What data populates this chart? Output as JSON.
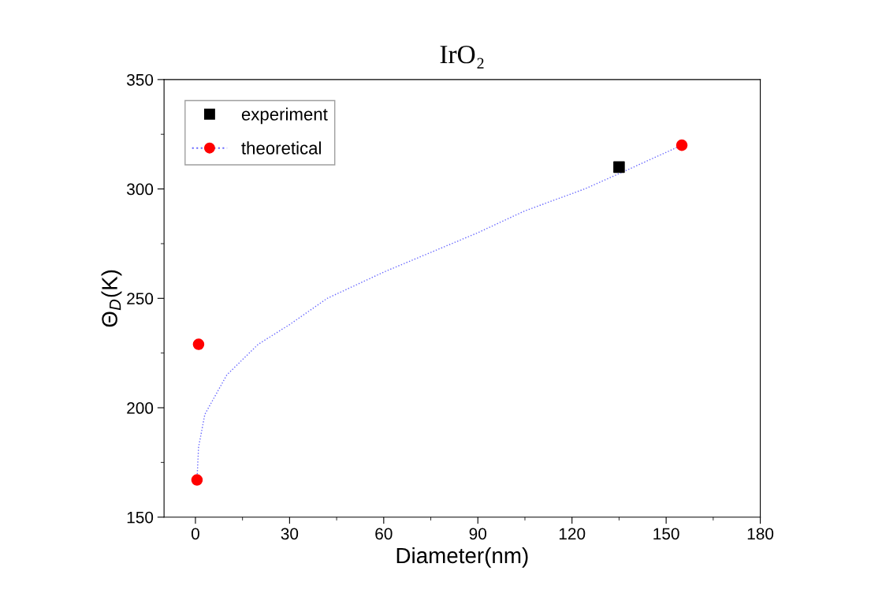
{
  "chart_data": {
    "type": "scatter",
    "title": "IrO₂",
    "xlabel": "Diameter(nm)",
    "ylabel": "Θ$_{D}$(K)",
    "xlim": [
      -10,
      180
    ],
    "xticks": [
      0,
      30,
      60,
      90,
      120,
      150,
      180
    ],
    "ylim": [
      150,
      350
    ],
    "yticks": [
      150,
      200,
      250,
      300,
      350
    ],
    "grid": false,
    "legend": "top left",
    "series": [
      {
        "name": "experiment",
        "marker": "square",
        "color": "#000000",
        "x": [
          135
        ],
        "values": [
          310
        ]
      },
      {
        "name": "theoretical",
        "marker": "circle",
        "color": "#ff0000",
        "x": [
          0.5,
          1,
          155
        ],
        "values": [
          167,
          229,
          320
        ]
      },
      {
        "type": "line",
        "line_style": "dotted",
        "color": "#6666ff",
        "x": [
          0.5,
          1,
          3,
          10,
          20,
          30,
          42,
          60,
          75,
          90,
          105,
          124,
          135,
          155
        ],
        "values": [
          167,
          182,
          197,
          215,
          229,
          238,
          250,
          262,
          271,
          280,
          290,
          300,
          307,
          320
        ]
      }
    ]
  }
}
